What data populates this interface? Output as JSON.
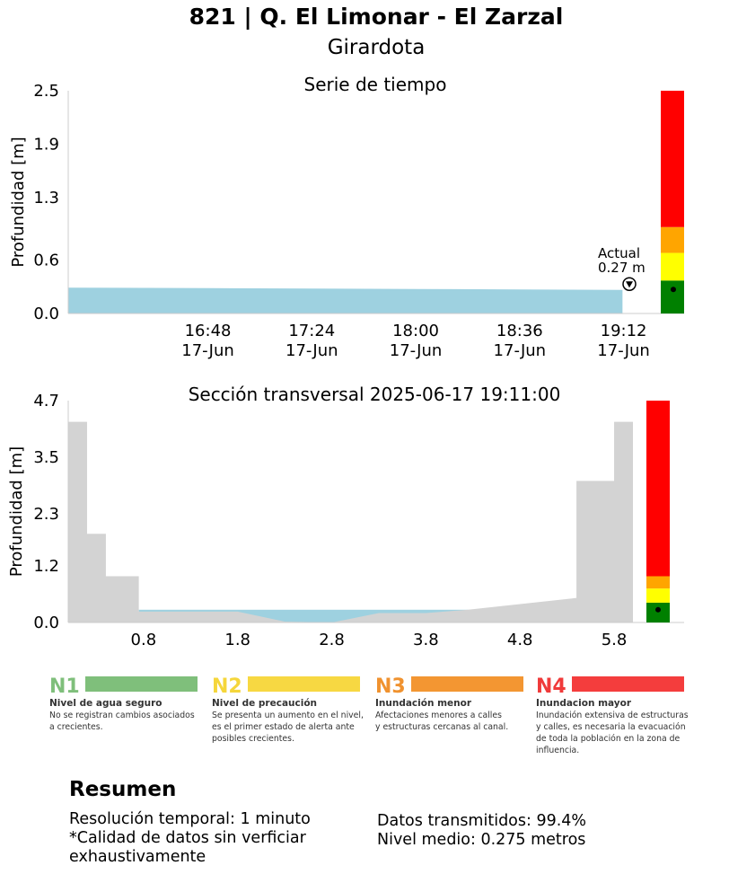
{
  "header": {
    "title": "821 | Q. El Limonar - El Zarzal",
    "subtitle": "Girardota"
  },
  "chart_data": [
    {
      "type": "area",
      "title": "Serie de tiempo",
      "ylabel": "Profundidad [m]",
      "xlabel": "",
      "ylim": [
        0,
        2.5
      ],
      "yticks": [
        "0.0",
        "0.6",
        "1.3",
        "1.9",
        "2.5"
      ],
      "xtick_labels": [
        [
          "16:48",
          "17-Jun"
        ],
        [
          "17:24",
          "17-Jun"
        ],
        [
          "18:00",
          "17-Jun"
        ],
        [
          "18:36",
          "17-Jun"
        ],
        [
          "19:12",
          "17-Jun"
        ]
      ],
      "series": [
        {
          "x": [
            "2025-06-17 15:59",
            "2025-06-17 16:48",
            "2025-06-17 17:24",
            "2025-06-17 18:00",
            "2025-06-17 18:36",
            "2025-06-17 19:11"
          ],
          "y": [
            0.29,
            0.285,
            0.28,
            0.275,
            0.27,
            0.265
          ],
          "color": "#9ed1e0"
        }
      ],
      "annotation": {
        "line1": "Actual",
        "line2": "0.27 m",
        "value": 0.27
      },
      "level_bar": {
        "levels": [
          {
            "from": 0.0,
            "to": 0.37,
            "color": "#008000"
          },
          {
            "from": 0.37,
            "to": 0.68,
            "color": "#ffff00"
          },
          {
            "from": 0.68,
            "to": 0.97,
            "color": "#ffa500"
          },
          {
            "from": 0.97,
            "to": 2.5,
            "color": "#ff0000"
          }
        ],
        "marker": 0.27
      },
      "grid": false,
      "legend": "none"
    },
    {
      "type": "area",
      "title": "Sección transversal 2025-06-17 19:11:00",
      "ylabel": "Profundidad [m]",
      "xlabel": "",
      "ylim": [
        0,
        4.7
      ],
      "xlim": [
        0,
        6.0
      ],
      "yticks": [
        "0.0",
        "1.2",
        "2.3",
        "3.5",
        "4.7"
      ],
      "xticks": [
        "0.8",
        "1.8",
        "2.8",
        "3.8",
        "4.8",
        "5.8"
      ],
      "xtick_values": [
        0.8,
        1.8,
        2.8,
        3.8,
        4.8,
        5.8
      ],
      "ground": {
        "x": [
          0.0,
          0.2,
          0.2,
          0.4,
          0.4,
          0.75,
          0.75,
          1.8,
          2.3,
          2.8,
          3.3,
          3.8,
          4.25,
          5.4,
          5.4,
          5.8,
          5.8,
          6.0
        ],
        "y": [
          4.25,
          4.25,
          1.88,
          1.88,
          0.98,
          0.98,
          0.23,
          0.23,
          0.02,
          0.0,
          0.2,
          0.2,
          0.27,
          0.52,
          3.0,
          3.0,
          4.25,
          4.25
        ],
        "color": "#d3d3d3"
      },
      "water": {
        "level": 0.27,
        "from": 0.75,
        "to": 4.25,
        "color": "#9ed1e0"
      },
      "level_bar": {
        "levels": [
          {
            "from": 0.0,
            "to": 0.42,
            "color": "#008000"
          },
          {
            "from": 0.42,
            "to": 0.72,
            "color": "#ffff00"
          },
          {
            "from": 0.72,
            "to": 0.98,
            "color": "#ffa500"
          },
          {
            "from": 0.98,
            "to": 4.7,
            "color": "#ff0000"
          }
        ],
        "marker": 0.27
      },
      "grid": false,
      "legend": "none"
    }
  ],
  "levels_legend": [
    {
      "code": "N1",
      "name": "Nivel de agua seguro",
      "desc": [
        "No se registran cambios asociados",
        "a crecientes."
      ],
      "code_color": "#7fbf7b",
      "bar_color": "#7fbf7b"
    },
    {
      "code": "N2",
      "name": "Nivel de precaución",
      "desc": [
        "Se presenta un aumento en el nivel,",
        "es el primer estado de alerta ante",
        "posibles crecientes."
      ],
      "code_color": "#f5d63b",
      "bar_color": "#f7d842"
    },
    {
      "code": "N3",
      "name": "Inundación menor",
      "desc": [
        "Afectaciones menores a calles",
        "y estructuras cercanas al canal."
      ],
      "code_color": "#f0922f",
      "bar_color": "#f39632"
    },
    {
      "code": "N4",
      "name": "Inundacion mayor",
      "desc": [
        "Inundación extensiva de estructuras",
        "y calles, es necesaria la evacuación",
        "de toda la población en la zona de",
        "influencia."
      ],
      "code_color": "#f03a3a",
      "bar_color": "#f43d3d"
    }
  ],
  "summary": {
    "heading": "Resumen",
    "left_lines": [
      "Resolución temporal: 1 minuto",
      "*Calidad de datos sin verficiar",
      "exhaustivamente"
    ],
    "right_lines": [
      "Datos transmitidos: 99.4%",
      "Nivel medio: 0.275 metros"
    ]
  }
}
